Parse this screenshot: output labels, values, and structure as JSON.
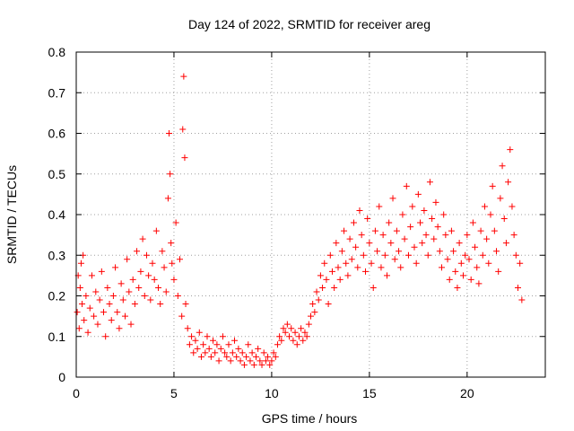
{
  "chart_data": {
    "type": "scatter",
    "title": "Day 124 of 2022, SRMTID for receiver areg",
    "xlabel": "GPS time / hours",
    "ylabel": "SRMTID / TECUs",
    "xlim": [
      0,
      24
    ],
    "ylim": [
      0,
      0.8
    ],
    "x_ticks": [
      0,
      5,
      10,
      15,
      20
    ],
    "x_tick_labels": [
      "0",
      "5",
      "10",
      "15",
      "20"
    ],
    "y_ticks": [
      0,
      0.1,
      0.2,
      0.3,
      0.4,
      0.5,
      0.6,
      0.7,
      0.8
    ],
    "y_tick_labels": [
      "0",
      "0.1",
      "0.2",
      "0.3",
      "0.4",
      "0.5",
      "0.6",
      "0.7",
      "0.8"
    ],
    "grid": true,
    "marker": "+",
    "color": "#ff0000",
    "series": [
      {
        "name": "SRMTID",
        "x": [
          0.05,
          0.1,
          0.15,
          0.2,
          0.25,
          0.3,
          0.35,
          0.4,
          0.5,
          0.6,
          0.7,
          0.8,
          0.9,
          1.0,
          1.1,
          1.2,
          1.3,
          1.4,
          1.5,
          1.6,
          1.7,
          1.8,
          1.9,
          2.0,
          2.1,
          2.2,
          2.3,
          2.4,
          2.5,
          2.6,
          2.7,
          2.8,
          2.9,
          3.0,
          3.1,
          3.2,
          3.3,
          3.4,
          3.5,
          3.6,
          3.7,
          3.8,
          3.9,
          4.0,
          4.1,
          4.2,
          4.3,
          4.4,
          4.5,
          4.6,
          4.7,
          4.75,
          4.8,
          4.85,
          4.9,
          5.0,
          5.1,
          5.2,
          5.3,
          5.4,
          5.45,
          5.5,
          5.55,
          5.6,
          5.7,
          5.8,
          5.9,
          6.0,
          6.1,
          6.2,
          6.3,
          6.4,
          6.5,
          6.6,
          6.7,
          6.8,
          6.9,
          7.0,
          7.1,
          7.2,
          7.3,
          7.4,
          7.5,
          7.6,
          7.7,
          7.8,
          7.9,
          8.0,
          8.1,
          8.2,
          8.3,
          8.4,
          8.5,
          8.6,
          8.7,
          8.8,
          8.9,
          9.0,
          9.1,
          9.2,
          9.3,
          9.4,
          9.5,
          9.6,
          9.7,
          9.8,
          9.9,
          10.0,
          10.1,
          10.2,
          10.3,
          10.4,
          10.5,
          10.6,
          10.7,
          10.8,
          10.9,
          11.0,
          11.1,
          11.2,
          11.3,
          11.4,
          11.5,
          11.6,
          11.7,
          11.8,
          11.9,
          12.0,
          12.1,
          12.2,
          12.3,
          12.4,
          12.5,
          12.6,
          12.7,
          12.8,
          12.9,
          13.0,
          13.1,
          13.2,
          13.3,
          13.4,
          13.5,
          13.6,
          13.7,
          13.8,
          13.9,
          14.0,
          14.1,
          14.2,
          14.3,
          14.4,
          14.5,
          14.6,
          14.7,
          14.8,
          14.9,
          15.0,
          15.1,
          15.2,
          15.3,
          15.4,
          15.5,
          15.6,
          15.7,
          15.8,
          15.9,
          16.0,
          16.1,
          16.2,
          16.3,
          16.4,
          16.5,
          16.6,
          16.7,
          16.8,
          16.9,
          17.0,
          17.1,
          17.2,
          17.3,
          17.4,
          17.5,
          17.6,
          17.7,
          17.8,
          17.9,
          18.0,
          18.1,
          18.2,
          18.3,
          18.4,
          18.5,
          18.6,
          18.7,
          18.8,
          18.9,
          19.0,
          19.1,
          19.2,
          19.3,
          19.4,
          19.5,
          19.6,
          19.7,
          19.8,
          19.9,
          20.0,
          20.1,
          20.2,
          20.3,
          20.4,
          20.5,
          20.6,
          20.7,
          20.8,
          20.9,
          21.0,
          21.1,
          21.2,
          21.3,
          21.4,
          21.5,
          21.6,
          21.7,
          21.8,
          21.9,
          22.0,
          22.1,
          22.2,
          22.3,
          22.4,
          22.5,
          22.6,
          22.7,
          22.8
        ],
        "y": [
          0.16,
          0.25,
          0.12,
          0.22,
          0.28,
          0.18,
          0.3,
          0.14,
          0.2,
          0.11,
          0.17,
          0.25,
          0.15,
          0.21,
          0.13,
          0.19,
          0.26,
          0.16,
          0.1,
          0.22,
          0.18,
          0.14,
          0.2,
          0.27,
          0.16,
          0.12,
          0.23,
          0.19,
          0.15,
          0.29,
          0.21,
          0.13,
          0.24,
          0.18,
          0.31,
          0.22,
          0.26,
          0.34,
          0.2,
          0.3,
          0.25,
          0.19,
          0.28,
          0.24,
          0.36,
          0.22,
          0.18,
          0.31,
          0.27,
          0.21,
          0.44,
          0.6,
          0.5,
          0.33,
          0.28,
          0.24,
          0.38,
          0.2,
          0.29,
          0.15,
          0.61,
          0.74,
          0.54,
          0.18,
          0.12,
          0.08,
          0.1,
          0.06,
          0.09,
          0.07,
          0.11,
          0.05,
          0.08,
          0.06,
          0.1,
          0.07,
          0.05,
          0.09,
          0.06,
          0.08,
          0.04,
          0.07,
          0.1,
          0.06,
          0.05,
          0.08,
          0.04,
          0.06,
          0.09,
          0.05,
          0.07,
          0.04,
          0.06,
          0.03,
          0.05,
          0.08,
          0.04,
          0.06,
          0.03,
          0.05,
          0.07,
          0.04,
          0.03,
          0.06,
          0.04,
          0.05,
          0.03,
          0.04,
          0.06,
          0.05,
          0.08,
          0.1,
          0.09,
          0.12,
          0.11,
          0.13,
          0.1,
          0.12,
          0.09,
          0.11,
          0.08,
          0.1,
          0.12,
          0.09,
          0.11,
          0.1,
          0.13,
          0.15,
          0.18,
          0.16,
          0.21,
          0.19,
          0.25,
          0.22,
          0.28,
          0.24,
          0.18,
          0.3,
          0.26,
          0.22,
          0.33,
          0.27,
          0.24,
          0.31,
          0.36,
          0.28,
          0.25,
          0.34,
          0.29,
          0.38,
          0.32,
          0.27,
          0.41,
          0.35,
          0.3,
          0.26,
          0.39,
          0.33,
          0.28,
          0.22,
          0.36,
          0.31,
          0.42,
          0.27,
          0.35,
          0.3,
          0.25,
          0.38,
          0.33,
          0.44,
          0.29,
          0.36,
          0.31,
          0.27,
          0.4,
          0.34,
          0.47,
          0.3,
          0.37,
          0.42,
          0.32,
          0.28,
          0.45,
          0.38,
          0.33,
          0.41,
          0.35,
          0.3,
          0.48,
          0.39,
          0.34,
          0.43,
          0.37,
          0.31,
          0.27,
          0.4,
          0.35,
          0.29,
          0.24,
          0.36,
          0.31,
          0.26,
          0.22,
          0.33,
          0.28,
          0.25,
          0.3,
          0.35,
          0.29,
          0.24,
          0.38,
          0.32,
          0.27,
          0.23,
          0.36,
          0.3,
          0.42,
          0.34,
          0.28,
          0.4,
          0.47,
          0.36,
          0.31,
          0.26,
          0.44,
          0.52,
          0.39,
          0.33,
          0.48,
          0.56,
          0.42,
          0.35,
          0.3,
          0.22,
          0.28,
          0.19
        ]
      }
    ]
  }
}
